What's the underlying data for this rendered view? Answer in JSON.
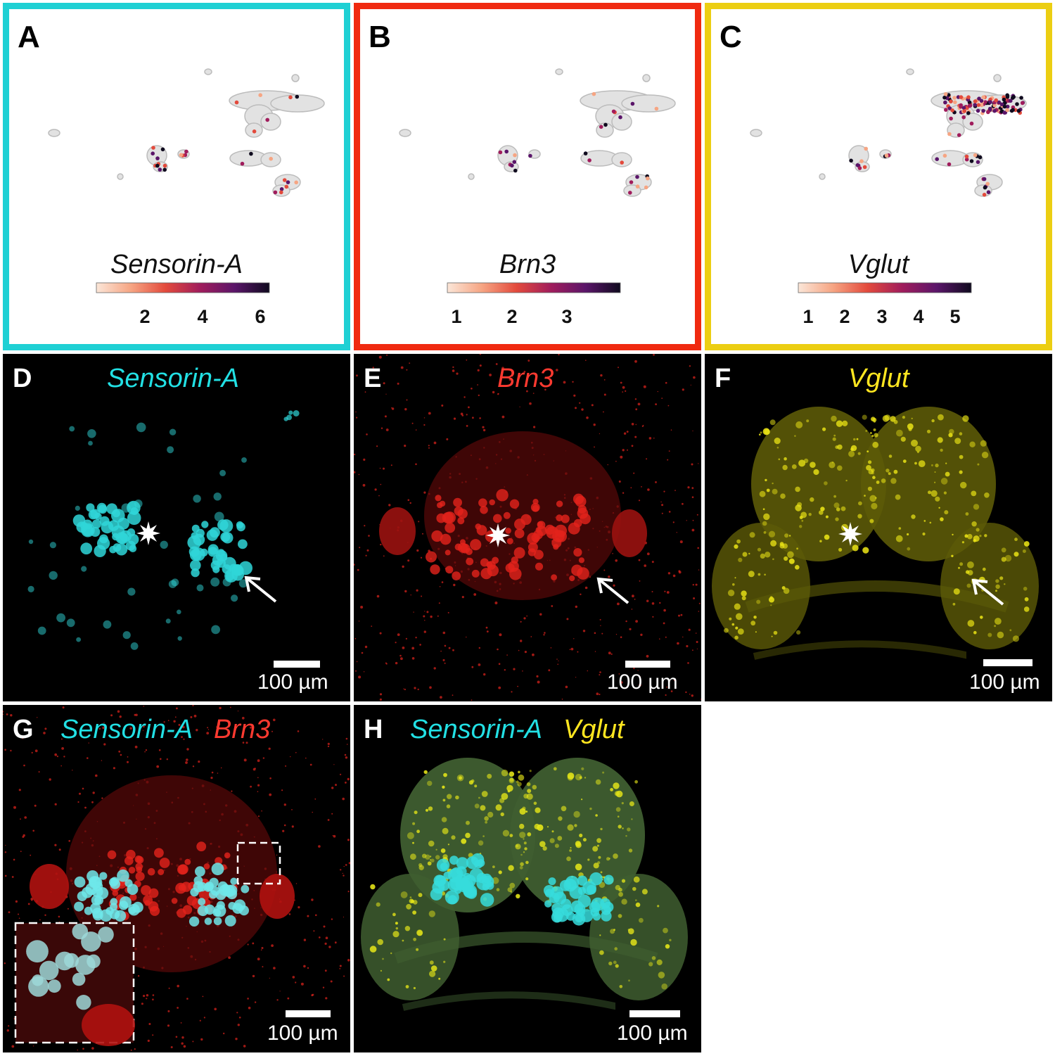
{
  "panels": {
    "A": {
      "letter": "A",
      "gene": "Sensorin-A",
      "border": "#1fd0d4",
      "ticks": [
        "2",
        "4",
        "6"
      ]
    },
    "B": {
      "letter": "B",
      "gene": "Brn3",
      "border": "#f02a10",
      "ticks": [
        "1",
        "2",
        "3"
      ]
    },
    "C": {
      "letter": "C",
      "gene": "Vglut",
      "border": "#ecce12",
      "ticks": [
        "1",
        "2",
        "3",
        "4",
        "5"
      ]
    },
    "D": {
      "letter": "D",
      "gene": "Sensorin-A",
      "gene_color": "#22e0e4",
      "scale": "100 µm"
    },
    "E": {
      "letter": "E",
      "gene": "Brn3",
      "gene_color": "#ff3a30",
      "scale": "100 µm"
    },
    "F": {
      "letter": "F",
      "gene": "Vglut",
      "gene_color": "#ffe620",
      "scale": "100 µm"
    },
    "G": {
      "letter": "G",
      "gene": "Sensorin-A",
      "gene_b": "Brn3",
      "gene_color": "#22e0e4",
      "gene_b_color": "#ff3a30",
      "scale": "100 µm"
    },
    "H": {
      "letter": "H",
      "gene": "Sensorin-A",
      "gene_b": "Vglut",
      "gene_color": "#22e0e4",
      "gene_b_color": "#ffe620",
      "scale": "100 µm"
    }
  },
  "colormap": [
    "#fbe6d8",
    "#f6a583",
    "#e34a3c",
    "#a01c5c",
    "#5a1569",
    "#0f0a1e"
  ]
}
